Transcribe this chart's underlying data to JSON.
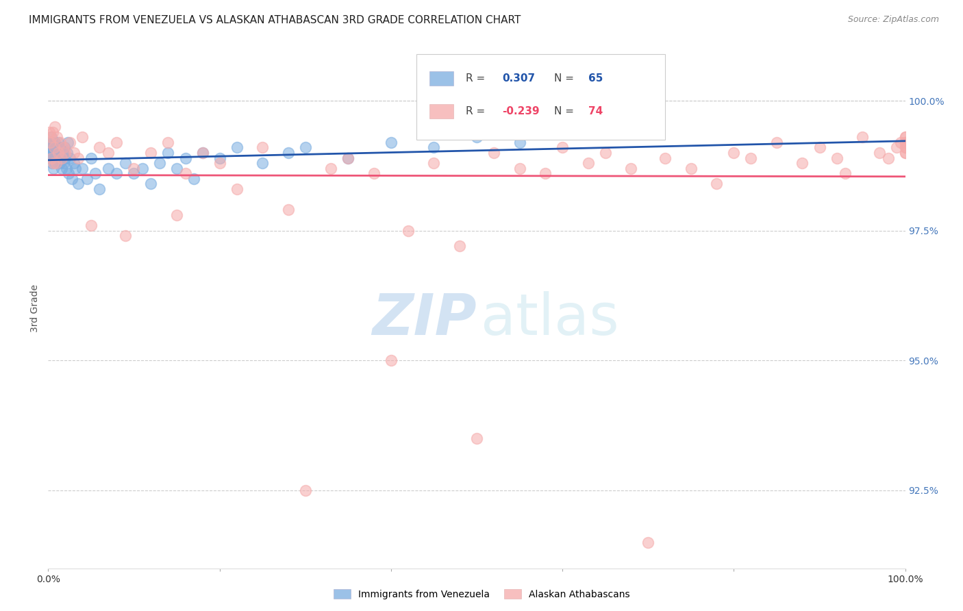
{
  "title": "IMMIGRANTS FROM VENEZUELA VS ALASKAN ATHABASCAN 3RD GRADE CORRELATION CHART",
  "source": "Source: ZipAtlas.com",
  "ylabel": "3rd Grade",
  "legend_label1": "Immigrants from Venezuela",
  "legend_label2": "Alaskan Athabascans",
  "legend_r1_val": "0.307",
  "legend_n1_val": "65",
  "legend_r2_val": "-0.239",
  "legend_n2_val": "74",
  "blue_color": "#7AADE0",
  "pink_color": "#F5AAAA",
  "blue_line_color": "#2255AA",
  "pink_line_color": "#EE5577",
  "background_color": "#FFFFFF",
  "grid_color": "#CCCCCC",
  "blue_x": [
    0.1,
    0.15,
    0.2,
    0.25,
    0.3,
    0.35,
    0.4,
    0.45,
    0.5,
    0.55,
    0.6,
    0.65,
    0.7,
    0.75,
    0.8,
    0.85,
    0.9,
    0.95,
    1.0,
    1.1,
    1.2,
    1.3,
    1.4,
    1.5,
    1.6,
    1.7,
    1.8,
    1.9,
    2.0,
    2.1,
    2.2,
    2.3,
    2.4,
    2.5,
    2.8,
    3.0,
    3.2,
    3.5,
    4.0,
    4.5,
    5.0,
    5.5,
    6.0,
    7.0,
    8.0,
    9.0,
    10.0,
    11.0,
    12.0,
    13.0,
    14.0,
    15.0,
    16.0,
    17.0,
    18.0,
    20.0,
    22.0,
    25.0,
    28.0,
    30.0,
    35.0,
    40.0,
    45.0,
    50.0,
    55.0
  ],
  "blue_y": [
    99.0,
    99.1,
    98.9,
    99.2,
    99.0,
    99.3,
    99.1,
    98.8,
    99.0,
    99.2,
    98.7,
    99.1,
    99.0,
    98.9,
    99.2,
    99.0,
    98.8,
    99.1,
    98.9,
    99.0,
    99.2,
    98.8,
    99.1,
    98.9,
    98.7,
    99.0,
    98.8,
    99.1,
    98.9,
    98.7,
    99.0,
    99.2,
    98.6,
    98.9,
    98.5,
    98.8,
    98.7,
    98.4,
    98.7,
    98.5,
    98.9,
    98.6,
    98.3,
    98.7,
    98.6,
    98.8,
    98.6,
    98.7,
    98.4,
    98.8,
    99.0,
    98.7,
    98.9,
    98.5,
    99.0,
    98.9,
    99.1,
    98.8,
    99.0,
    99.1,
    98.9,
    99.2,
    99.1,
    99.3,
    99.2
  ],
  "pink_x": [
    0.1,
    0.2,
    0.3,
    0.4,
    0.5,
    0.6,
    0.7,
    0.8,
    0.9,
    1.0,
    1.2,
    1.4,
    1.6,
    1.8,
    2.0,
    2.5,
    3.0,
    3.5,
    4.0,
    5.0,
    6.0,
    7.0,
    8.0,
    9.0,
    10.0,
    12.0,
    14.0,
    15.0,
    16.0,
    18.0,
    20.0,
    22.0,
    25.0,
    28.0,
    30.0,
    33.0,
    35.0,
    38.0,
    40.0,
    42.0,
    45.0,
    48.0,
    50.0,
    52.0,
    55.0,
    58.0,
    60.0,
    63.0,
    65.0,
    68.0,
    70.0,
    72.0,
    75.0,
    78.0,
    80.0,
    82.0,
    85.0,
    88.0,
    90.0,
    92.0,
    93.0,
    95.0,
    97.0,
    98.0,
    99.0,
    99.5,
    100.0,
    100.0,
    100.0,
    100.0,
    100.0,
    100.0,
    100.0,
    100.0
  ],
  "pink_y": [
    99.4,
    99.2,
    99.3,
    98.9,
    99.4,
    98.8,
    99.1,
    99.5,
    98.8,
    99.3,
    99.0,
    99.2,
    98.9,
    99.1,
    99.0,
    99.2,
    99.0,
    98.9,
    99.3,
    97.6,
    99.1,
    99.0,
    99.2,
    97.4,
    98.7,
    99.0,
    99.2,
    97.8,
    98.6,
    99.0,
    98.8,
    98.3,
    99.1,
    97.9,
    92.5,
    98.7,
    98.9,
    98.6,
    95.0,
    97.5,
    98.8,
    97.2,
    93.5,
    99.0,
    98.7,
    98.6,
    99.1,
    98.8,
    99.0,
    98.7,
    91.5,
    98.9,
    98.7,
    98.4,
    99.0,
    98.9,
    99.2,
    98.8,
    99.1,
    98.9,
    98.6,
    99.3,
    99.0,
    98.9,
    99.1,
    99.2,
    99.3,
    99.0,
    99.1,
    99.2,
    99.0,
    99.3,
    99.1,
    99.2
  ],
  "xlim": [
    0.0,
    100.0
  ],
  "ylim": [
    91.0,
    101.0
  ],
  "yticks": [
    92.5,
    95.0,
    97.5,
    100.0
  ],
  "xticks": [
    0,
    20,
    40,
    60,
    80,
    100
  ]
}
